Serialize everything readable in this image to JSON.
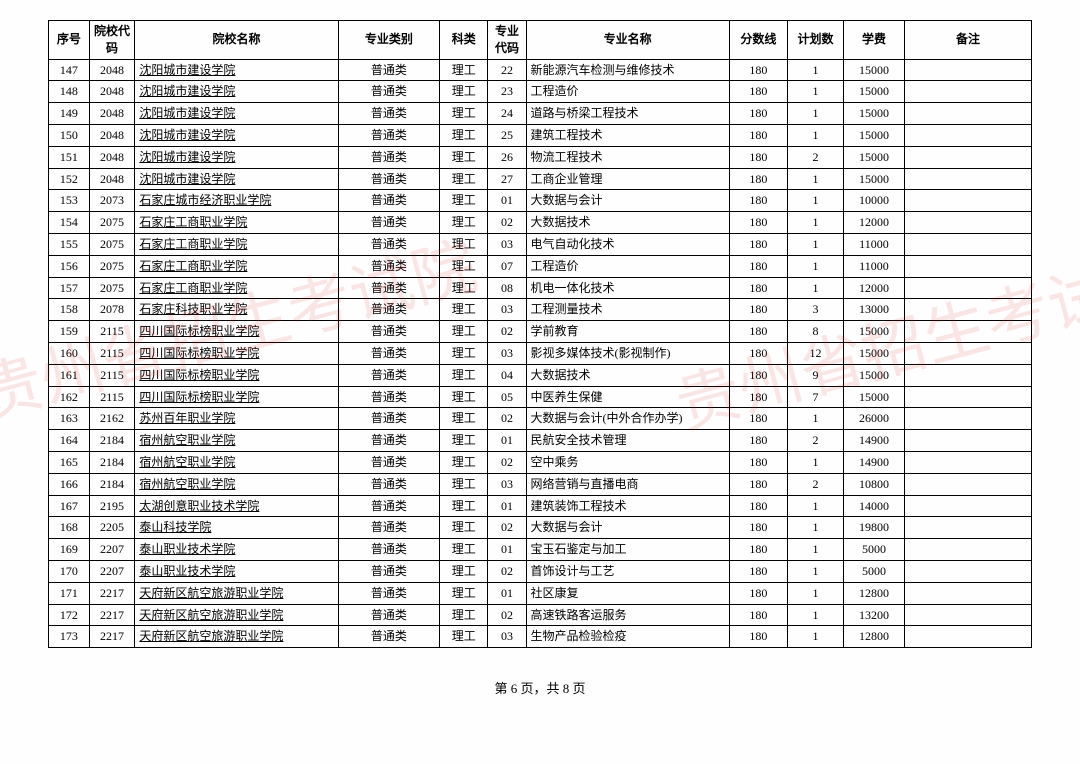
{
  "watermark_text": "贵州省招生考试院",
  "watermark_color": "rgba(220,50,50,0.12)",
  "footer": "第 6 页，共 8 页",
  "headers": {
    "seq": "序号",
    "school_code": "院校代码",
    "school_name": "院校名称",
    "category": "专业类别",
    "subject": "科类",
    "major_code": "专业代码",
    "major_name": "专业名称",
    "score": "分数线",
    "plan": "计划数",
    "fee": "学费",
    "note": "备注"
  },
  "rows": [
    {
      "seq": "147",
      "school_code": "2048",
      "school_name": "沈阳城市建设学院",
      "category": "普通类",
      "subject": "理工",
      "major_code": "22",
      "major_name": "新能源汽车检测与维修技术",
      "score": "180",
      "plan": "1",
      "fee": "15000",
      "note": "",
      "link": true
    },
    {
      "seq": "148",
      "school_code": "2048",
      "school_name": "沈阳城市建设学院",
      "category": "普通类",
      "subject": "理工",
      "major_code": "23",
      "major_name": "工程造价",
      "score": "180",
      "plan": "1",
      "fee": "15000",
      "note": "",
      "link": true
    },
    {
      "seq": "149",
      "school_code": "2048",
      "school_name": "沈阳城市建设学院",
      "category": "普通类",
      "subject": "理工",
      "major_code": "24",
      "major_name": "道路与桥梁工程技术",
      "score": "180",
      "plan": "1",
      "fee": "15000",
      "note": "",
      "link": true
    },
    {
      "seq": "150",
      "school_code": "2048",
      "school_name": "沈阳城市建设学院",
      "category": "普通类",
      "subject": "理工",
      "major_code": "25",
      "major_name": "建筑工程技术",
      "score": "180",
      "plan": "1",
      "fee": "15000",
      "note": "",
      "link": true
    },
    {
      "seq": "151",
      "school_code": "2048",
      "school_name": "沈阳城市建设学院",
      "category": "普通类",
      "subject": "理工",
      "major_code": "26",
      "major_name": "物流工程技术",
      "score": "180",
      "plan": "2",
      "fee": "15000",
      "note": "",
      "link": true
    },
    {
      "seq": "152",
      "school_code": "2048",
      "school_name": "沈阳城市建设学院",
      "category": "普通类",
      "subject": "理工",
      "major_code": "27",
      "major_name": "工商企业管理",
      "score": "180",
      "plan": "1",
      "fee": "15000",
      "note": "",
      "link": true
    },
    {
      "seq": "153",
      "school_code": "2073",
      "school_name": "石家庄城市经济职业学院",
      "category": "普通类",
      "subject": "理工",
      "major_code": "01",
      "major_name": "大数据与会计",
      "score": "180",
      "plan": "1",
      "fee": "10000",
      "note": "",
      "link": true
    },
    {
      "seq": "154",
      "school_code": "2075",
      "school_name": "石家庄工商职业学院",
      "category": "普通类",
      "subject": "理工",
      "major_code": "02",
      "major_name": "大数据技术",
      "score": "180",
      "plan": "1",
      "fee": "12000",
      "note": "",
      "link": true
    },
    {
      "seq": "155",
      "school_code": "2075",
      "school_name": "石家庄工商职业学院",
      "category": "普通类",
      "subject": "理工",
      "major_code": "03",
      "major_name": "电气自动化技术",
      "score": "180",
      "plan": "1",
      "fee": "11000",
      "note": "",
      "link": true
    },
    {
      "seq": "156",
      "school_code": "2075",
      "school_name": "石家庄工商职业学院",
      "category": "普通类",
      "subject": "理工",
      "major_code": "07",
      "major_name": "工程造价",
      "score": "180",
      "plan": "1",
      "fee": "11000",
      "note": "",
      "link": true
    },
    {
      "seq": "157",
      "school_code": "2075",
      "school_name": "石家庄工商职业学院",
      "category": "普通类",
      "subject": "理工",
      "major_code": "08",
      "major_name": "机电一体化技术",
      "score": "180",
      "plan": "1",
      "fee": "12000",
      "note": "",
      "link": true
    },
    {
      "seq": "158",
      "school_code": "2078",
      "school_name": "石家庄科技职业学院",
      "category": "普通类",
      "subject": "理工",
      "major_code": "03",
      "major_name": "工程测量技术",
      "score": "180",
      "plan": "3",
      "fee": "13000",
      "note": "",
      "link": true
    },
    {
      "seq": "159",
      "school_code": "2115",
      "school_name": "四川国际标榜职业学院",
      "category": "普通类",
      "subject": "理工",
      "major_code": "02",
      "major_name": "学前教育",
      "score": "180",
      "plan": "8",
      "fee": "15000",
      "note": "",
      "link": true
    },
    {
      "seq": "160",
      "school_code": "2115",
      "school_name": "四川国际标榜职业学院",
      "category": "普通类",
      "subject": "理工",
      "major_code": "03",
      "major_name": "影视多媒体技术(影视制作)",
      "score": "180",
      "plan": "12",
      "fee": "15000",
      "note": "",
      "link": true
    },
    {
      "seq": "161",
      "school_code": "2115",
      "school_name": "四川国际标榜职业学院",
      "category": "普通类",
      "subject": "理工",
      "major_code": "04",
      "major_name": "大数据技术",
      "score": "180",
      "plan": "9",
      "fee": "15000",
      "note": "",
      "link": true
    },
    {
      "seq": "162",
      "school_code": "2115",
      "school_name": "四川国际标榜职业学院",
      "category": "普通类",
      "subject": "理工",
      "major_code": "05",
      "major_name": "中医养生保健",
      "score": "180",
      "plan": "7",
      "fee": "15000",
      "note": "",
      "link": true
    },
    {
      "seq": "163",
      "school_code": "2162",
      "school_name": "苏州百年职业学院",
      "category": "普通类",
      "subject": "理工",
      "major_code": "02",
      "major_name": "大数据与会计(中外合作办学)",
      "score": "180",
      "plan": "1",
      "fee": "26000",
      "note": "",
      "link": true
    },
    {
      "seq": "164",
      "school_code": "2184",
      "school_name": "宿州航空职业学院",
      "category": "普通类",
      "subject": "理工",
      "major_code": "01",
      "major_name": "民航安全技术管理",
      "score": "180",
      "plan": "2",
      "fee": "14900",
      "note": "",
      "link": true
    },
    {
      "seq": "165",
      "school_code": "2184",
      "school_name": "宿州航空职业学院",
      "category": "普通类",
      "subject": "理工",
      "major_code": "02",
      "major_name": "空中乘务",
      "score": "180",
      "plan": "1",
      "fee": "14900",
      "note": "",
      "link": true
    },
    {
      "seq": "166",
      "school_code": "2184",
      "school_name": "宿州航空职业学院",
      "category": "普通类",
      "subject": "理工",
      "major_code": "03",
      "major_name": "网络营销与直播电商",
      "score": "180",
      "plan": "2",
      "fee": "10800",
      "note": "",
      "link": true
    },
    {
      "seq": "167",
      "school_code": "2195",
      "school_name": "太湖创意职业技术学院",
      "category": "普通类",
      "subject": "理工",
      "major_code": "01",
      "major_name": "建筑装饰工程技术",
      "score": "180",
      "plan": "1",
      "fee": "14000",
      "note": "",
      "link": true
    },
    {
      "seq": "168",
      "school_code": "2205",
      "school_name": "泰山科技学院",
      "category": "普通类",
      "subject": "理工",
      "major_code": "02",
      "major_name": "大数据与会计",
      "score": "180",
      "plan": "1",
      "fee": "19800",
      "note": "",
      "link": true
    },
    {
      "seq": "169",
      "school_code": "2207",
      "school_name": "泰山职业技术学院",
      "category": "普通类",
      "subject": "理工",
      "major_code": "01",
      "major_name": "宝玉石鉴定与加工",
      "score": "180",
      "plan": "1",
      "fee": "5000",
      "note": "",
      "link": true
    },
    {
      "seq": "170",
      "school_code": "2207",
      "school_name": "泰山职业技术学院",
      "category": "普通类",
      "subject": "理工",
      "major_code": "02",
      "major_name": "首饰设计与工艺",
      "score": "180",
      "plan": "1",
      "fee": "5000",
      "note": "",
      "link": true
    },
    {
      "seq": "171",
      "school_code": "2217",
      "school_name": "天府新区航空旅游职业学院",
      "category": "普通类",
      "subject": "理工",
      "major_code": "01",
      "major_name": "社区康复",
      "score": "180",
      "plan": "1",
      "fee": "12800",
      "note": "",
      "link": true
    },
    {
      "seq": "172",
      "school_code": "2217",
      "school_name": "天府新区航空旅游职业学院",
      "category": "普通类",
      "subject": "理工",
      "major_code": "02",
      "major_name": "高速铁路客运服务",
      "score": "180",
      "plan": "1",
      "fee": "13200",
      "note": "",
      "link": true
    },
    {
      "seq": "173",
      "school_code": "2217",
      "school_name": "天府新区航空旅游职业学院",
      "category": "普通类",
      "subject": "理工",
      "major_code": "03",
      "major_name": "生物产品检验检疫",
      "score": "180",
      "plan": "1",
      "fee": "12800",
      "note": "",
      "link": true
    }
  ]
}
